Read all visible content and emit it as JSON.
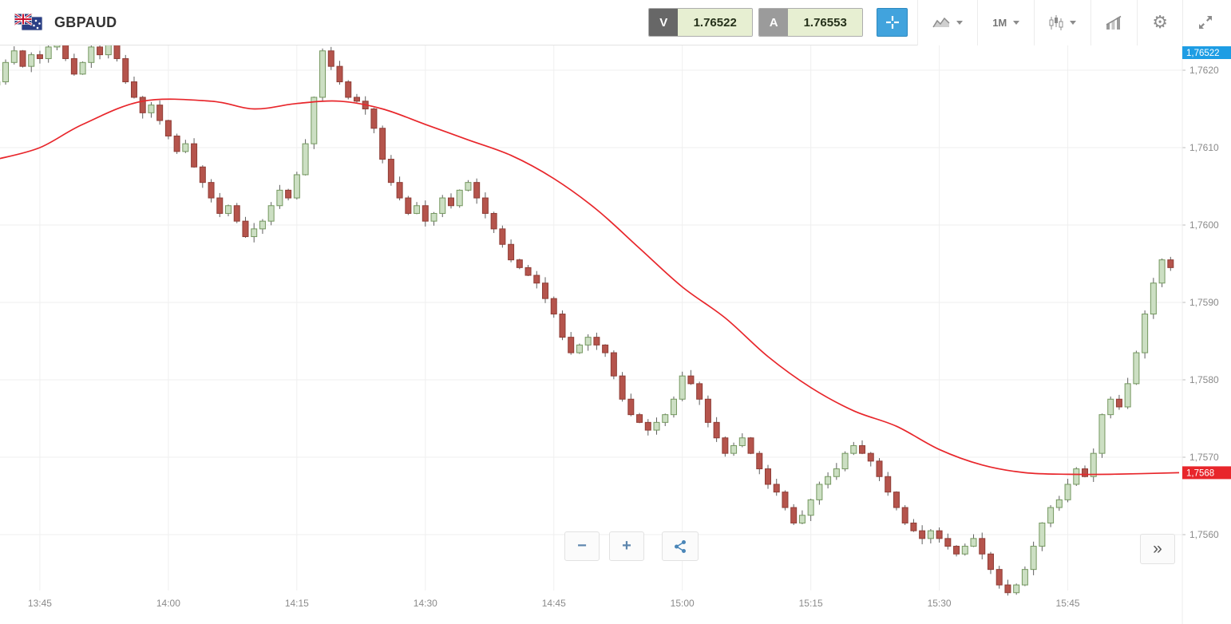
{
  "header": {
    "symbol": "GBPAUD",
    "sell_button": {
      "label": "V",
      "price": "1.76522"
    },
    "buy_button": {
      "label": "A",
      "price": "1.76553"
    },
    "timeframe": "1M"
  },
  "accent_colors": {
    "crosshair_button": "#41a3dd",
    "sell_key_bg": "#676767",
    "buy_key_bg": "#9b9b9b",
    "quote_value_bg": "#e7efd2"
  },
  "chart_controls": {
    "zoom_out": "−",
    "zoom_in": "+",
    "collapse": "»"
  },
  "price_scale": {
    "current_price_badge": {
      "text": "1,76522",
      "color": "#1e9de4",
      "pinned": "top"
    },
    "ma_badge": {
      "text": "1,7568",
      "price": 1.7568,
      "color": "#e8262b"
    },
    "labels": [
      "1,7620",
      "1,7610",
      "1,7600",
      "1,7590",
      "1,7580",
      "1,7570",
      "1,7560"
    ]
  },
  "chart_data": {
    "type": "candlestick",
    "symbol": "GBPAUD",
    "interval": "1m",
    "start_time": "13:40",
    "x_ticks": [
      "13:45",
      "14:00",
      "14:15",
      "14:30",
      "14:45",
      "15:00",
      "15:15",
      "15:30",
      "15:45"
    ],
    "x_tick_minutes": [
      5,
      20,
      35,
      50,
      65,
      80,
      95,
      110,
      125
    ],
    "y_ticks": [
      1.762,
      1.761,
      1.76,
      1.759,
      1.758,
      1.757,
      1.756
    ],
    "ylim": [
      1.7553,
      1.7623
    ],
    "grid": true,
    "legend": "none",
    "closes": [
      1.76185,
      1.7621,
      1.76225,
      1.76205,
      1.7622,
      1.76215,
      1.7623,
      1.7624,
      1.76215,
      1.76195,
      1.7621,
      1.7623,
      1.7622,
      1.7624,
      1.76215,
      1.76185,
      1.76165,
      1.76145,
      1.76155,
      1.76135,
      1.76115,
      1.76095,
      1.76105,
      1.76075,
      1.76055,
      1.76035,
      1.76015,
      1.76025,
      1.76005,
      1.75985,
      1.75995,
      1.76005,
      1.76025,
      1.76045,
      1.76035,
      1.76065,
      1.76105,
      1.76165,
      1.76225,
      1.76205,
      1.76185,
      1.76165,
      1.7616,
      1.7615,
      1.76125,
      1.76085,
      1.76055,
      1.76035,
      1.76015,
      1.76025,
      1.76005,
      1.76015,
      1.76035,
      1.76025,
      1.76045,
      1.76055,
      1.76035,
      1.76015,
      1.75995,
      1.75975,
      1.75955,
      1.75945,
      1.75935,
      1.75925,
      1.75905,
      1.75885,
      1.75855,
      1.75835,
      1.75845,
      1.75855,
      1.75845,
      1.75835,
      1.75805,
      1.75775,
      1.75755,
      1.75745,
      1.75735,
      1.75745,
      1.75755,
      1.75775,
      1.75805,
      1.75795,
      1.75775,
      1.75745,
      1.75725,
      1.75705,
      1.75715,
      1.75725,
      1.75705,
      1.75685,
      1.75665,
      1.75655,
      1.75635,
      1.75615,
      1.75625,
      1.75645,
      1.75665,
      1.75675,
      1.75685,
      1.75705,
      1.75715,
      1.75705,
      1.75695,
      1.75675,
      1.75655,
      1.75635,
      1.75615,
      1.75605,
      1.75595,
      1.75605,
      1.75595,
      1.75585,
      1.75575,
      1.75585,
      1.75595,
      1.75575,
      1.75555,
      1.75535,
      1.75525,
      1.75535,
      1.75555,
      1.75585,
      1.75615,
      1.75635,
      1.75645,
      1.75665,
      1.75685,
      1.75675,
      1.75705,
      1.75755,
      1.75775,
      1.75765,
      1.75795,
      1.75835,
      1.75885,
      1.75925,
      1.75955,
      1.75945
    ],
    "ma_line": {
      "name": "moving-average",
      "color": "#e8262b",
      "points": [
        [
          0,
          1.76085
        ],
        [
          5,
          1.761
        ],
        [
          10,
          1.7613
        ],
        [
          17,
          1.7616
        ],
        [
          25,
          1.7616
        ],
        [
          30,
          1.7615
        ],
        [
          35,
          1.76157
        ],
        [
          40,
          1.7616
        ],
        [
          45,
          1.7615
        ],
        [
          50,
          1.7613
        ],
        [
          55,
          1.7611
        ],
        [
          60,
          1.7609
        ],
        [
          65,
          1.7606
        ],
        [
          70,
          1.7602
        ],
        [
          75,
          1.7597
        ],
        [
          80,
          1.7592
        ],
        [
          85,
          1.7588
        ],
        [
          90,
          1.7583
        ],
        [
          95,
          1.7579
        ],
        [
          100,
          1.7576
        ],
        [
          105,
          1.7574
        ],
        [
          110,
          1.7571
        ],
        [
          115,
          1.7569
        ],
        [
          120,
          1.7568
        ],
        [
          125,
          1.75678
        ],
        [
          130,
          1.75678
        ],
        [
          138,
          1.7568
        ]
      ]
    },
    "colors": {
      "up_fill": "#ccdfc3",
      "up_stroke": "#74975f",
      "down_fill": "#b5544c",
      "down_stroke": "#8f3d36",
      "wick": "#5f5f5f"
    }
  }
}
